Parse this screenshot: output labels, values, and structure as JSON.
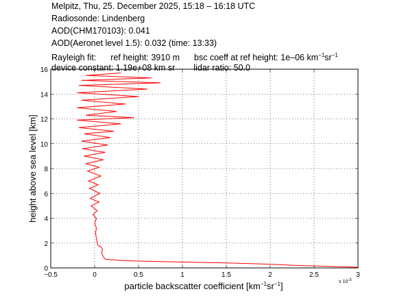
{
  "header": {
    "line1": "Melpitz, Thu, 25. December 2025, 15:18 – 16:18 UTC",
    "line2": "Radiosonde: Lindenberg",
    "line3": "AOD(CHM170103): 0.041",
    "line4": "AOD(Aeronet level 1.5): 0.032   (time: 13:33)",
    "line5_a": "Rayleigh fit:",
    "line5_b": "ref height: 3910 m",
    "line5_c": "bsc coeff at ref height: 1e–06 km",
    "line5_sup1": "−1",
    "line5_d": "sr",
    "line5_sup2": "−1",
    "line6_a": "device constant: 1.19e+08 km sr",
    "line6_b": "lidar ratio: 50.0"
  },
  "chart_data": {
    "type": "line",
    "xlabel_main": "particle backscatter coefficient [km",
    "xlabel_sup1": "−1",
    "xlabel_mid": "sr",
    "xlabel_sup2": "−1",
    "xlabel_end": "]",
    "ylabel": "height above sea level [km]",
    "x_multiplier": "x 10",
    "x_multiplier_exp": "-3",
    "xlim": [
      -0.5,
      3
    ],
    "ylim": [
      0,
      16
    ],
    "xticks": [
      -0.5,
      0,
      0.5,
      1,
      1.5,
      2,
      2.5,
      3
    ],
    "xtick_labels": [
      "−0.5",
      "0",
      "0.5",
      "1",
      "1.5",
      "2",
      "2.5",
      "3"
    ],
    "yticks": [
      0,
      2,
      4,
      6,
      8,
      10,
      12,
      14,
      16
    ],
    "ytick_labels": [
      "0",
      "2",
      "4",
      "6",
      "8",
      "10",
      "12",
      "14",
      "16"
    ],
    "grid": true,
    "series": [
      {
        "color": "#ff0000",
        "points": [
          [
            3.0,
            0.05
          ],
          [
            2.8,
            0.1
          ],
          [
            2.3,
            0.2
          ],
          [
            2.0,
            0.3
          ],
          [
            1.5,
            0.4
          ],
          [
            1.1,
            0.45
          ],
          [
            0.8,
            0.5
          ],
          [
            0.5,
            0.55
          ],
          [
            0.3,
            0.6
          ],
          [
            0.12,
            0.7
          ],
          [
            0.1,
            0.9
          ],
          [
            0.08,
            1.2
          ],
          [
            0.09,
            1.5
          ],
          [
            0.07,
            1.7
          ],
          [
            0.04,
            1.8
          ],
          [
            0.03,
            2.0
          ],
          [
            0.02,
            2.4
          ],
          [
            0.01,
            2.8
          ],
          [
            0.02,
            3.2
          ],
          [
            0.0,
            3.6
          ],
          [
            0.02,
            4.0
          ],
          [
            -0.02,
            4.3
          ],
          [
            0.03,
            4.6
          ],
          [
            -0.04,
            5.0
          ],
          [
            0.05,
            5.3
          ],
          [
            -0.05,
            5.6
          ],
          [
            0.06,
            6.0
          ],
          [
            -0.06,
            6.4
          ],
          [
            0.04,
            6.7
          ],
          [
            -0.07,
            7.0
          ],
          [
            0.07,
            7.4
          ],
          [
            -0.08,
            7.8
          ],
          [
            0.05,
            8.1
          ],
          [
            -0.1,
            8.4
          ],
          [
            0.1,
            8.7
          ],
          [
            -0.12,
            9.0
          ],
          [
            0.12,
            9.3
          ],
          [
            -0.14,
            9.6
          ],
          [
            0.15,
            9.9
          ],
          [
            -0.15,
            10.2
          ],
          [
            0.18,
            10.5
          ],
          [
            -0.12,
            10.8
          ],
          [
            0.22,
            11.0
          ],
          [
            -0.18,
            11.3
          ],
          [
            0.3,
            11.6
          ],
          [
            -0.2,
            11.9
          ],
          [
            0.45,
            12.1
          ],
          [
            -0.1,
            12.3
          ],
          [
            0.25,
            12.6
          ],
          [
            -0.2,
            12.9
          ],
          [
            0.35,
            13.2
          ],
          [
            -0.15,
            13.5
          ],
          [
            0.5,
            13.8
          ],
          [
            -0.2,
            14.1
          ],
          [
            0.6,
            14.4
          ],
          [
            -0.18,
            14.7
          ],
          [
            0.75,
            14.9
          ],
          [
            -0.15,
            15.1
          ],
          [
            0.65,
            15.3
          ],
          [
            -0.1,
            15.5
          ],
          [
            0.3,
            15.7
          ]
        ]
      }
    ]
  }
}
